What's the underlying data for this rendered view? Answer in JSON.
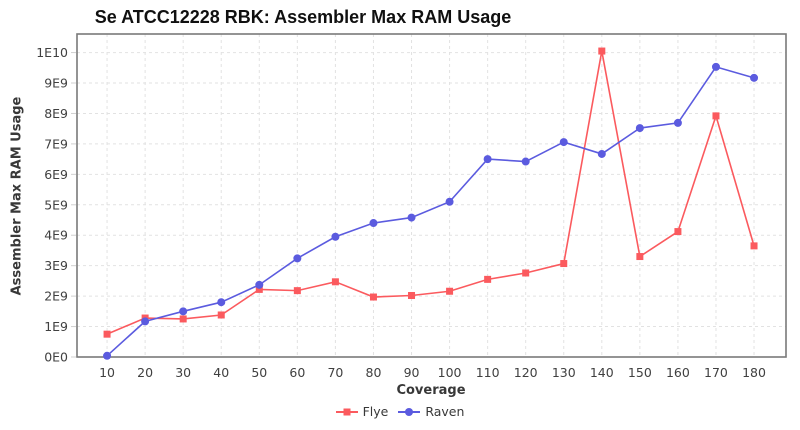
{
  "title": "Se ATCC12228 RBK: Assembler Max RAM Usage",
  "chart_data": {
    "type": "line",
    "title": "Se ATCC12228 RBK: Assembler Max RAM Usage",
    "xlabel": "Coverage",
    "ylabel": "Assembler Max RAM Usage",
    "grid": "dashed",
    "legend_position": "bottom",
    "y_value_unit": "1e9 (bytes)",
    "xlim": [
      2.1,
      188.4
    ],
    "ylim_e9": [
      0,
      10.61
    ],
    "x_ticks": [
      10,
      20,
      30,
      40,
      50,
      60,
      70,
      80,
      90,
      100,
      110,
      120,
      130,
      140,
      150,
      160,
      170,
      180
    ],
    "y_ticks": [
      {
        "v": 0,
        "label": "0E0"
      },
      {
        "v": 1,
        "label": "1E9"
      },
      {
        "v": 2,
        "label": "2E9"
      },
      {
        "v": 3,
        "label": "3E9"
      },
      {
        "v": 4,
        "label": "4E9"
      },
      {
        "v": 5,
        "label": "5E9"
      },
      {
        "v": 6,
        "label": "6E9"
      },
      {
        "v": 7,
        "label": "7E9"
      },
      {
        "v": 8,
        "label": "8E9"
      },
      {
        "v": 9,
        "label": "9E9"
      },
      {
        "v": 10,
        "label": "1E10"
      }
    ],
    "categories": [
      10,
      20,
      30,
      40,
      50,
      60,
      70,
      80,
      90,
      100,
      110,
      120,
      130,
      140,
      150,
      160,
      170,
      180
    ],
    "series": [
      {
        "name": "Flye",
        "marker": "square",
        "color": "#fb5a5e",
        "values_e9": [
          0.75,
          1.28,
          1.25,
          1.38,
          2.22,
          2.18,
          2.47,
          1.97,
          2.02,
          2.16,
          2.55,
          2.76,
          3.07,
          10.05,
          3.3,
          4.12,
          7.92,
          3.65
        ]
      },
      {
        "name": "Raven",
        "marker": "circle",
        "color": "#5b5bdf",
        "values_e9": [
          0.04,
          1.17,
          1.5,
          1.8,
          2.37,
          3.24,
          3.95,
          4.4,
          4.58,
          5.1,
          6.5,
          6.42,
          7.06,
          6.67,
          7.52,
          7.69,
          9.53,
          9.17
        ]
      }
    ]
  }
}
